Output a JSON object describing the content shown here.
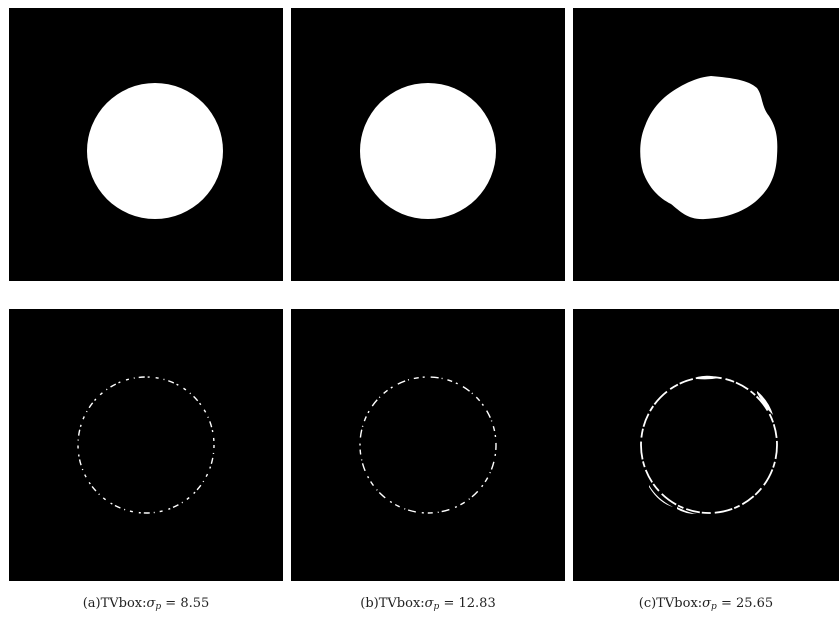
{
  "figure": {
    "panels": [
      {
        "tag": "(a)",
        "method": "TVbox:",
        "symbol": "σ",
        "subscript": "p",
        "equals": "=",
        "value": "8.55"
      },
      {
        "tag": "(b)",
        "method": "TVbox:",
        "symbol": "σ",
        "subscript": "p",
        "equals": "=",
        "value": "12.83"
      },
      {
        "tag": "(c)",
        "method": "TVbox:",
        "symbol": "σ",
        "subscript": "p",
        "equals": "=",
        "value": "25.65"
      }
    ],
    "colors": {
      "background": "#000000",
      "foreground": "#ffffff"
    }
  }
}
